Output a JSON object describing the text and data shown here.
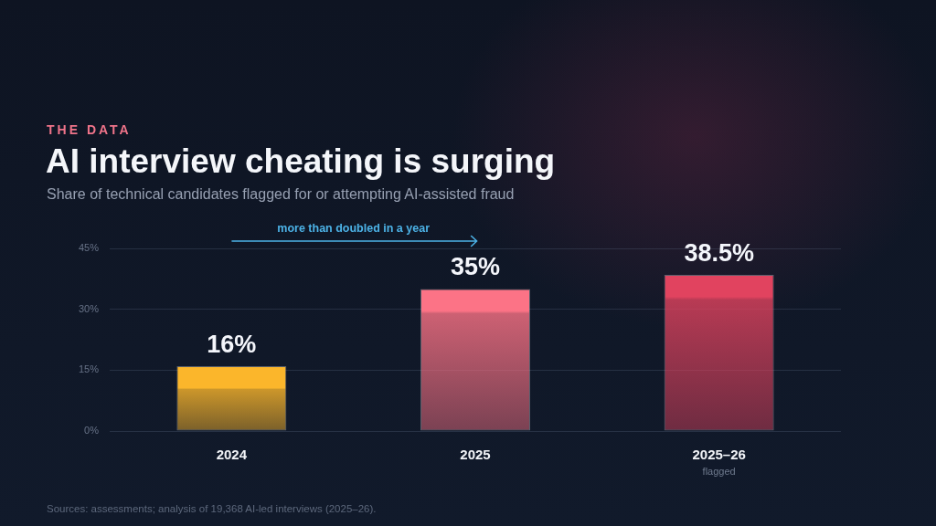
{
  "chart_data": {
    "type": "bar",
    "title": "AI interview cheating is surging",
    "subtitle": "Share of technical candidates flagged for or attempting AI-assisted fraud",
    "categories": [
      "2024",
      "2025",
      "2025–26"
    ],
    "values": [
      16,
      35,
      38.5
    ],
    "colors": [
      "#fbb62b",
      "#fc7386",
      "#e1435f"
    ],
    "value_labels": [
      "16%",
      "35%",
      "38.5%"
    ],
    "ylim": [
      0,
      45
    ],
    "yticks": [
      {
        "value": 0,
        "label": "0%"
      },
      {
        "value": 15,
        "label": "15%"
      },
      {
        "value": 30,
        "label": "30%"
      },
      {
        "value": 45,
        "label": "45%"
      }
    ],
    "grid": "y",
    "annotations": [
      "THE DATA",
      "more than doubled in a year",
      "flagged",
      "Sources: assessments; analysis of 19,368 AI-led interviews (2025–26)."
    ]
  }
}
